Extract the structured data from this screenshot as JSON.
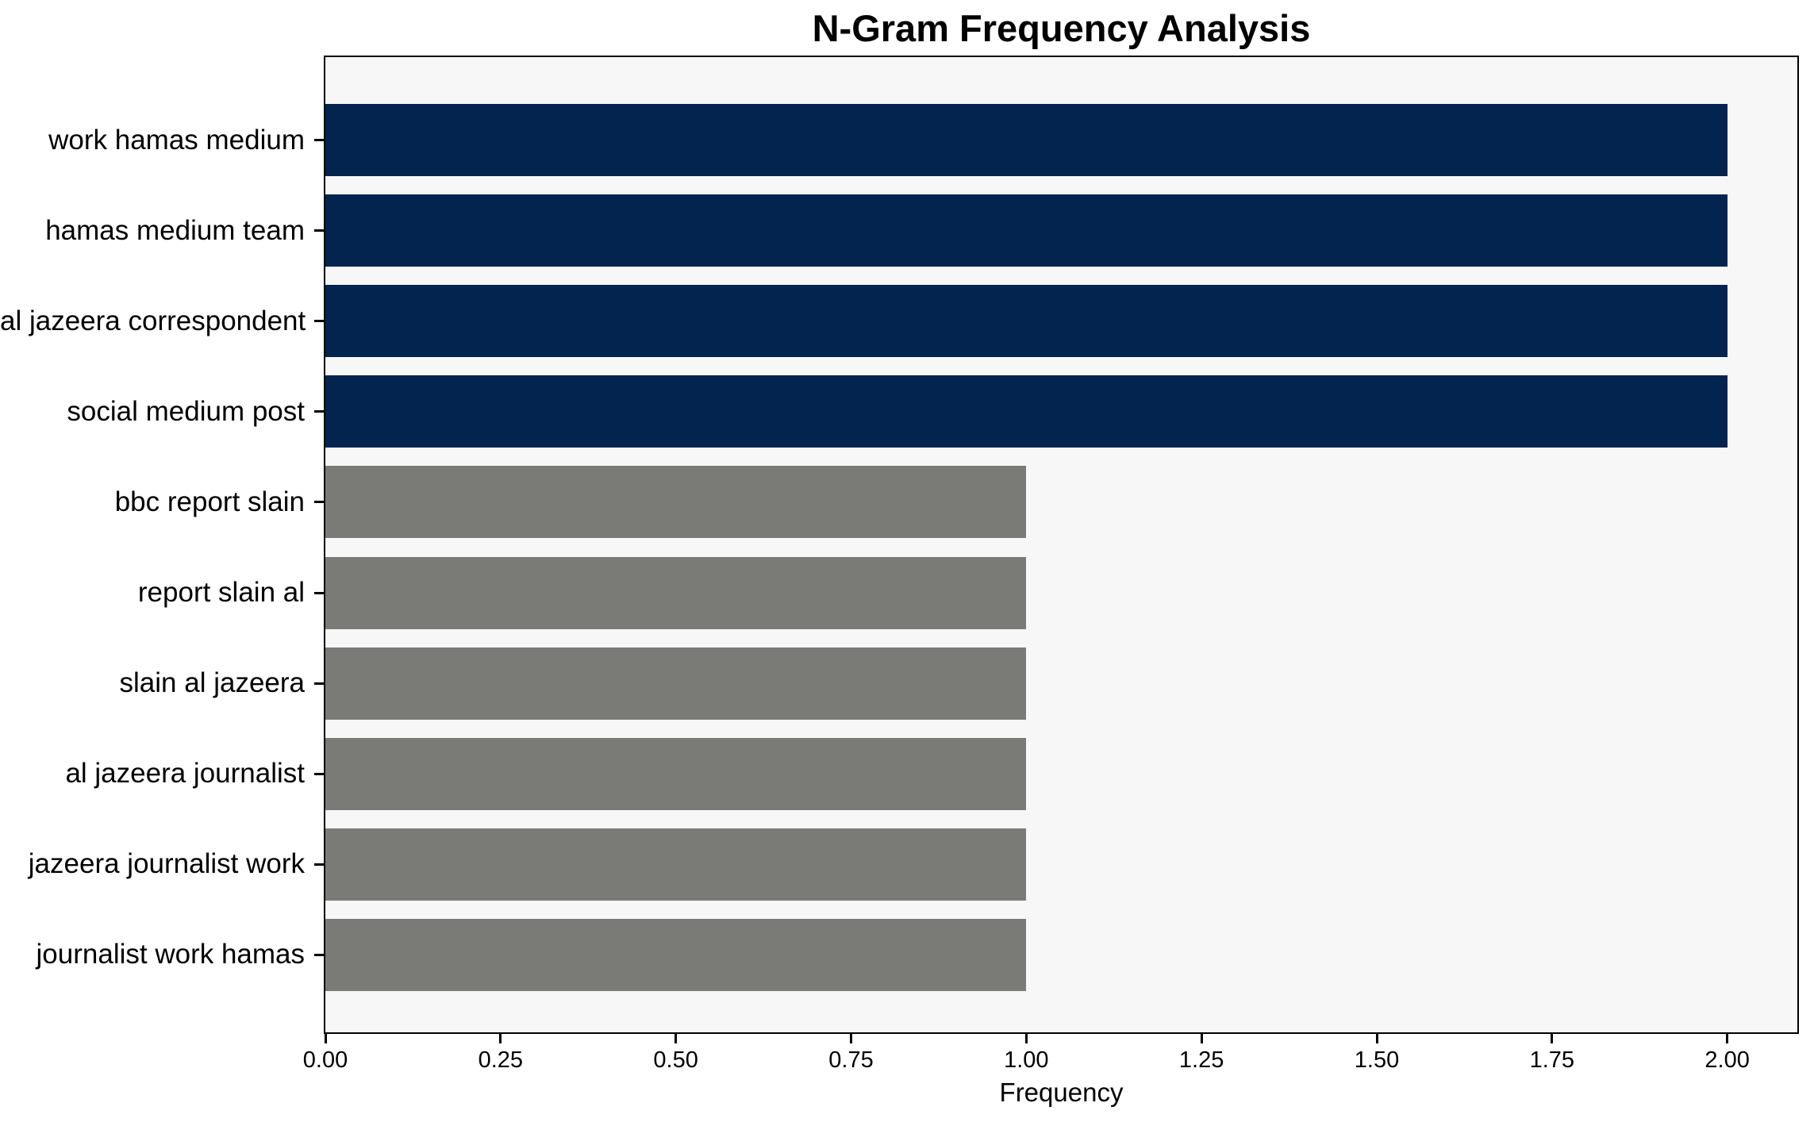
{
  "chart_data": {
    "type": "bar",
    "orientation": "horizontal",
    "title": "N-Gram Frequency Analysis",
    "xlabel": "Frequency",
    "ylabel": "",
    "categories": [
      "work hamas medium",
      "hamas medium team",
      "al jazeera correspondent",
      "social medium post",
      "bbc report slain",
      "report slain al",
      "slain al jazeera",
      "al jazeera journalist",
      "jazeera journalist work",
      "journalist work hamas"
    ],
    "values": [
      2,
      2,
      2,
      2,
      1,
      1,
      1,
      1,
      1,
      1
    ],
    "bar_colors": [
      "#02244e",
      "#02244e",
      "#02244e",
      "#02244e",
      "#7a7a77",
      "#7a7a77",
      "#7a7a77",
      "#7a7a77",
      "#7a7a77",
      "#7a7a77"
    ],
    "xlim": [
      0,
      2.1
    ],
    "xticks": [
      "0.00",
      "0.25",
      "0.50",
      "0.75",
      "1.00",
      "1.25",
      "1.50",
      "1.75",
      "2.00"
    ],
    "xtick_values": [
      0,
      0.25,
      0.5,
      0.75,
      1.0,
      1.25,
      1.5,
      1.75,
      2.0
    ],
    "grid": false,
    "legend": null,
    "colors": {
      "highlight_bar": "#02244e",
      "default_bar": "#7a7a77",
      "plot_background": "#f7f7f8",
      "figure_background": "#ffffff",
      "spine": "#000000",
      "text": "#000000"
    }
  }
}
